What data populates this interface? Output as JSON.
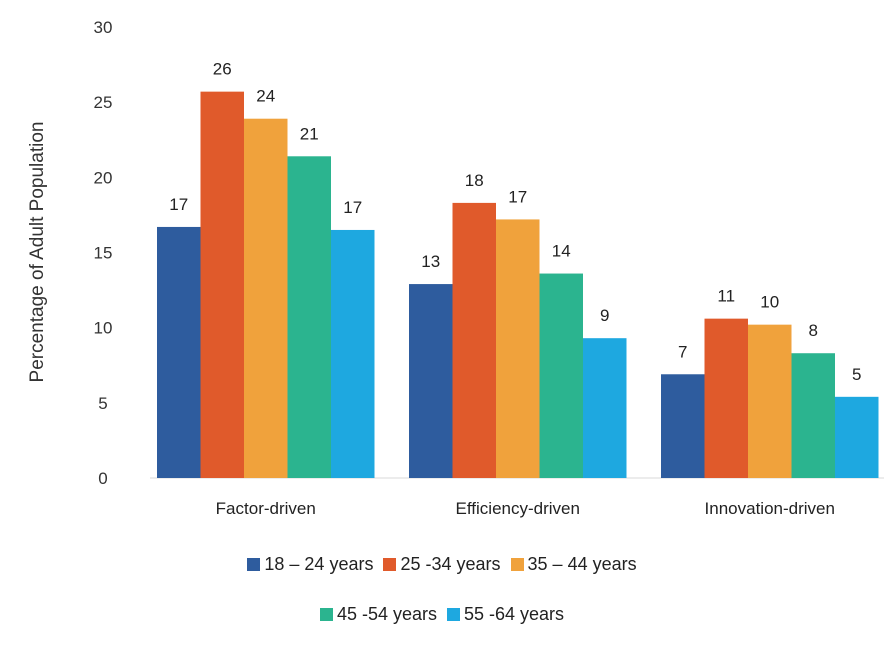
{
  "chart_data": {
    "type": "bar",
    "title": "",
    "xlabel": "",
    "ylabel": "Percentage of Adult Population",
    "ylim": [
      0,
      30
    ],
    "yticks": [
      0,
      5,
      10,
      15,
      20,
      25,
      30
    ],
    "grid": false,
    "legend_position": "bottom",
    "categories": [
      "Factor-driven",
      "Efficiency-driven",
      "Innovation-driven"
    ],
    "series": [
      {
        "name": "18 – 24 years",
        "color": "#2e5c9e",
        "values": [
          16.7,
          12.9,
          6.9
        ],
        "labels": [
          "17",
          "13",
          "7"
        ]
      },
      {
        "name": "25 -34 years",
        "color": "#e05a2b",
        "values": [
          25.7,
          18.3,
          10.6
        ],
        "labels": [
          "26",
          "18",
          "11"
        ]
      },
      {
        "name": "35 – 44 years",
        "color": "#f0a23c",
        "values": [
          23.9,
          17.2,
          10.2
        ],
        "labels": [
          "24",
          "17",
          "10"
        ]
      },
      {
        "name": "45 -54 years",
        "color": "#2bb48f",
        "values": [
          21.4,
          13.6,
          8.3
        ],
        "labels": [
          "21",
          "14",
          "8"
        ]
      },
      {
        "name": "55 -64 years",
        "color": "#1ea8e0",
        "values": [
          16.5,
          9.3,
          5.4
        ],
        "labels": [
          "17",
          "9",
          "5"
        ]
      }
    ]
  }
}
